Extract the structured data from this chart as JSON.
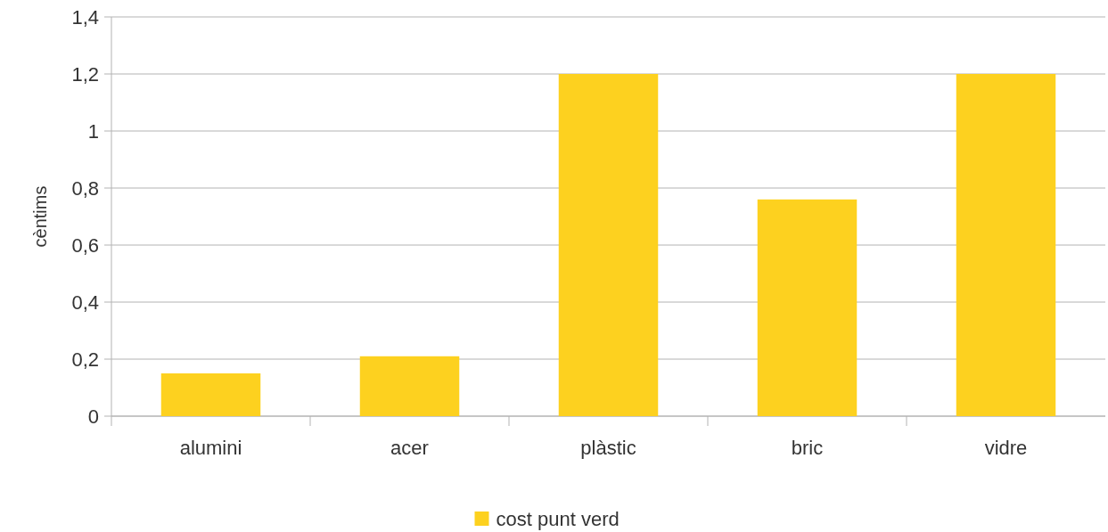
{
  "chart_data": {
    "type": "bar",
    "ylabel": "cèntims",
    "categories": [
      "alumini",
      "acer",
      "plàstic",
      "bric",
      "vidre"
    ],
    "series": [
      {
        "name": "cost punt verd",
        "color": "#fdd11f",
        "values": [
          0.15,
          0.21,
          1.2,
          0.76,
          1.2
        ]
      }
    ],
    "ylim": [
      0,
      1.4
    ],
    "yticks": [
      0,
      {
        "value": 0.2,
        "label": "0,2"
      },
      {
        "value": 0.4,
        "label": "0,4"
      },
      {
        "value": 0.6,
        "label": "0,6"
      },
      {
        "value": 0.8,
        "label": "0,8"
      },
      1,
      {
        "value": 1.2,
        "label": "1,2"
      },
      {
        "value": 1.4,
        "label": "1,4"
      }
    ],
    "grid": "y",
    "legend": "bottom"
  }
}
